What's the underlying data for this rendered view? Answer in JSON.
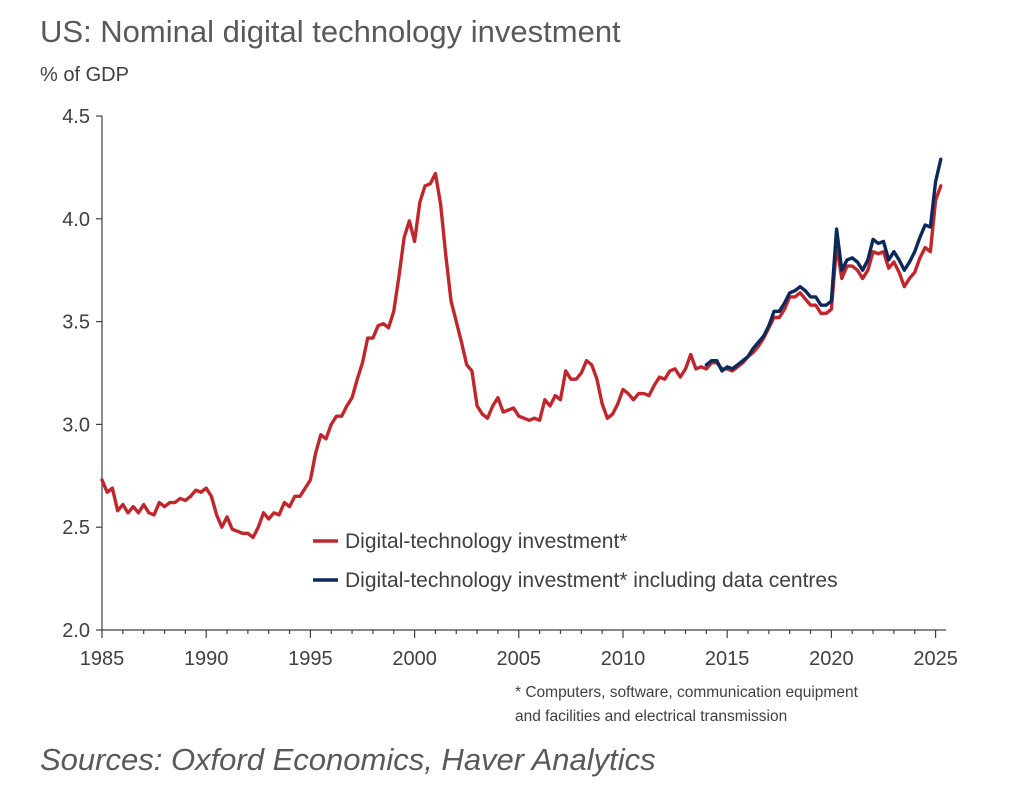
{
  "title": "US: Nominal digital technology investment",
  "unit": "% of GDP",
  "footnote": {
    "line1": "* Computers, software, communication equipment",
    "line2": "and facilities  and electrical transmission"
  },
  "sources": "Sources: Oxford Economics, Haver Analytics",
  "colors": {
    "series1": "#C0272D",
    "series2": "#0B2A5B",
    "axis": "#404040"
  },
  "chart_data": {
    "type": "line",
    "xlabel": "",
    "ylabel": "% of GDP",
    "xlim": [
      1985,
      2025.5
    ],
    "ylim": [
      2.0,
      4.5
    ],
    "x_ticks": [
      "1985",
      "1990",
      "1995",
      "2000",
      "2005",
      "2010",
      "2015",
      "2020",
      "2025"
    ],
    "y_ticks": [
      "2.0",
      "2.5",
      "3.0",
      "3.5",
      "4.0",
      "4.5"
    ],
    "legend_position": "bottom-right",
    "series": [
      {
        "name": "Digital-technology investment*",
        "color": "#C0272D",
        "points": [
          [
            1985.0,
            2.73
          ],
          [
            1985.25,
            2.67
          ],
          [
            1985.5,
            2.69
          ],
          [
            1985.75,
            2.58
          ],
          [
            1986.0,
            2.61
          ],
          [
            1986.25,
            2.57
          ],
          [
            1986.5,
            2.6
          ],
          [
            1986.75,
            2.57
          ],
          [
            1987.0,
            2.61
          ],
          [
            1987.25,
            2.57
          ],
          [
            1987.5,
            2.56
          ],
          [
            1987.75,
            2.62
          ],
          [
            1988.0,
            2.6
          ],
          [
            1988.25,
            2.62
          ],
          [
            1988.5,
            2.62
          ],
          [
            1988.75,
            2.64
          ],
          [
            1989.0,
            2.63
          ],
          [
            1989.25,
            2.65
          ],
          [
            1989.5,
            2.68
          ],
          [
            1989.75,
            2.67
          ],
          [
            1990.0,
            2.69
          ],
          [
            1990.25,
            2.65
          ],
          [
            1990.5,
            2.56
          ],
          [
            1990.75,
            2.5
          ],
          [
            1991.0,
            2.55
          ],
          [
            1991.25,
            2.49
          ],
          [
            1991.5,
            2.48
          ],
          [
            1991.75,
            2.47
          ],
          [
            1992.0,
            2.47
          ],
          [
            1992.25,
            2.45
          ],
          [
            1992.5,
            2.5
          ],
          [
            1992.75,
            2.57
          ],
          [
            1993.0,
            2.54
          ],
          [
            1993.25,
            2.57
          ],
          [
            1993.5,
            2.56
          ],
          [
            1993.75,
            2.62
          ],
          [
            1994.0,
            2.6
          ],
          [
            1994.25,
            2.65
          ],
          [
            1994.5,
            2.65
          ],
          [
            1994.75,
            2.69
          ],
          [
            1995.0,
            2.73
          ],
          [
            1995.25,
            2.86
          ],
          [
            1995.5,
            2.95
          ],
          [
            1995.75,
            2.93
          ],
          [
            1996.0,
            3.0
          ],
          [
            1996.25,
            3.04
          ],
          [
            1996.5,
            3.04
          ],
          [
            1996.75,
            3.09
          ],
          [
            1997.0,
            3.13
          ],
          [
            1997.25,
            3.22
          ],
          [
            1997.5,
            3.3
          ],
          [
            1997.75,
            3.42
          ],
          [
            1998.0,
            3.42
          ],
          [
            1998.25,
            3.48
          ],
          [
            1998.5,
            3.49
          ],
          [
            1998.75,
            3.47
          ],
          [
            1999.0,
            3.55
          ],
          [
            1999.25,
            3.72
          ],
          [
            1999.5,
            3.91
          ],
          [
            1999.75,
            3.99
          ],
          [
            2000.0,
            3.89
          ],
          [
            2000.25,
            4.08
          ],
          [
            2000.5,
            4.16
          ],
          [
            2000.75,
            4.17
          ],
          [
            2001.0,
            4.22
          ],
          [
            2001.25,
            4.07
          ],
          [
            2001.5,
            3.82
          ],
          [
            2001.75,
            3.6
          ],
          [
            2002.0,
            3.5
          ],
          [
            2002.25,
            3.4
          ],
          [
            2002.5,
            3.29
          ],
          [
            2002.75,
            3.26
          ],
          [
            2003.0,
            3.09
          ],
          [
            2003.25,
            3.05
          ],
          [
            2003.5,
            3.03
          ],
          [
            2003.75,
            3.09
          ],
          [
            2004.0,
            3.13
          ],
          [
            2004.25,
            3.06
          ],
          [
            2004.5,
            3.07
          ],
          [
            2004.75,
            3.08
          ],
          [
            2005.0,
            3.04
          ],
          [
            2005.25,
            3.03
          ],
          [
            2005.5,
            3.02
          ],
          [
            2005.75,
            3.03
          ],
          [
            2006.0,
            3.02
          ],
          [
            2006.25,
            3.12
          ],
          [
            2006.5,
            3.09
          ],
          [
            2006.75,
            3.14
          ],
          [
            2007.0,
            3.12
          ],
          [
            2007.25,
            3.26
          ],
          [
            2007.5,
            3.22
          ],
          [
            2007.75,
            3.22
          ],
          [
            2008.0,
            3.25
          ],
          [
            2008.25,
            3.31
          ],
          [
            2008.5,
            3.29
          ],
          [
            2008.75,
            3.22
          ],
          [
            2009.0,
            3.1
          ],
          [
            2009.25,
            3.03
          ],
          [
            2009.5,
            3.05
          ],
          [
            2009.75,
            3.1
          ],
          [
            2010.0,
            3.17
          ],
          [
            2010.25,
            3.15
          ],
          [
            2010.5,
            3.12
          ],
          [
            2010.75,
            3.15
          ],
          [
            2011.0,
            3.15
          ],
          [
            2011.25,
            3.14
          ],
          [
            2011.5,
            3.19
          ],
          [
            2011.75,
            3.23
          ],
          [
            2012.0,
            3.22
          ],
          [
            2012.25,
            3.26
          ],
          [
            2012.5,
            3.27
          ],
          [
            2012.75,
            3.23
          ],
          [
            2013.0,
            3.27
          ],
          [
            2013.25,
            3.34
          ],
          [
            2013.5,
            3.27
          ],
          [
            2013.75,
            3.28
          ],
          [
            2014.0,
            3.27
          ],
          [
            2014.25,
            3.3
          ],
          [
            2014.5,
            3.3
          ],
          [
            2014.75,
            3.27
          ],
          [
            2015.0,
            3.27
          ],
          [
            2015.25,
            3.26
          ],
          [
            2015.5,
            3.28
          ],
          [
            2015.75,
            3.3
          ],
          [
            2016.0,
            3.33
          ],
          [
            2016.25,
            3.35
          ],
          [
            2016.5,
            3.38
          ],
          [
            2016.75,
            3.42
          ],
          [
            2017.0,
            3.47
          ],
          [
            2017.25,
            3.52
          ],
          [
            2017.5,
            3.52
          ],
          [
            2017.75,
            3.56
          ],
          [
            2018.0,
            3.62
          ],
          [
            2018.25,
            3.62
          ],
          [
            2018.5,
            3.64
          ],
          [
            2018.75,
            3.61
          ],
          [
            2019.0,
            3.58
          ],
          [
            2019.25,
            3.58
          ],
          [
            2019.5,
            3.54
          ],
          [
            2019.75,
            3.54
          ],
          [
            2020.0,
            3.56
          ],
          [
            2020.25,
            3.87
          ],
          [
            2020.5,
            3.71
          ],
          [
            2020.75,
            3.77
          ],
          [
            2021.0,
            3.77
          ],
          [
            2021.25,
            3.75
          ],
          [
            2021.5,
            3.71
          ],
          [
            2021.75,
            3.75
          ],
          [
            2022.0,
            3.84
          ],
          [
            2022.25,
            3.83
          ],
          [
            2022.5,
            3.84
          ],
          [
            2022.75,
            3.76
          ],
          [
            2023.0,
            3.79
          ],
          [
            2023.25,
            3.74
          ],
          [
            2023.5,
            3.67
          ],
          [
            2023.75,
            3.71
          ],
          [
            2024.0,
            3.74
          ],
          [
            2024.25,
            3.81
          ],
          [
            2024.5,
            3.86
          ],
          [
            2024.75,
            3.84
          ],
          [
            2025.0,
            4.09
          ],
          [
            2025.25,
            4.16
          ]
        ]
      },
      {
        "name": "Digital-technology investment* including data centres",
        "color": "#0B2A5B",
        "points": [
          [
            2014.0,
            3.29
          ],
          [
            2014.25,
            3.31
          ],
          [
            2014.5,
            3.31
          ],
          [
            2014.75,
            3.26
          ],
          [
            2015.0,
            3.28
          ],
          [
            2015.25,
            3.27
          ],
          [
            2015.5,
            3.29
          ],
          [
            2015.75,
            3.31
          ],
          [
            2016.0,
            3.33
          ],
          [
            2016.25,
            3.37
          ],
          [
            2016.5,
            3.4
          ],
          [
            2016.75,
            3.43
          ],
          [
            2017.0,
            3.48
          ],
          [
            2017.25,
            3.55
          ],
          [
            2017.5,
            3.55
          ],
          [
            2017.75,
            3.59
          ],
          [
            2018.0,
            3.64
          ],
          [
            2018.25,
            3.65
          ],
          [
            2018.5,
            3.67
          ],
          [
            2018.75,
            3.65
          ],
          [
            2019.0,
            3.62
          ],
          [
            2019.25,
            3.62
          ],
          [
            2019.5,
            3.58
          ],
          [
            2019.75,
            3.58
          ],
          [
            2020.0,
            3.6
          ],
          [
            2020.25,
            3.95
          ],
          [
            2020.5,
            3.75
          ],
          [
            2020.75,
            3.8
          ],
          [
            2021.0,
            3.81
          ],
          [
            2021.25,
            3.79
          ],
          [
            2021.5,
            3.75
          ],
          [
            2021.75,
            3.8
          ],
          [
            2022.0,
            3.9
          ],
          [
            2022.25,
            3.88
          ],
          [
            2022.5,
            3.89
          ],
          [
            2022.75,
            3.8
          ],
          [
            2023.0,
            3.84
          ],
          [
            2023.25,
            3.8
          ],
          [
            2023.5,
            3.75
          ],
          [
            2023.75,
            3.79
          ],
          [
            2024.0,
            3.84
          ],
          [
            2024.25,
            3.91
          ],
          [
            2024.5,
            3.97
          ],
          [
            2024.75,
            3.96
          ],
          [
            2025.0,
            4.18
          ],
          [
            2025.25,
            4.29
          ]
        ]
      }
    ]
  }
}
